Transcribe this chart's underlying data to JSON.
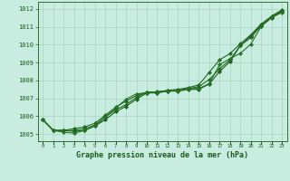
{
  "xlabel": "Graphe pression niveau de la mer (hPa)",
  "xlim": [
    -0.5,
    23.5
  ],
  "ylim": [
    1004.6,
    1012.4
  ],
  "yticks": [
    1005,
    1006,
    1007,
    1008,
    1009,
    1010,
    1011,
    1012
  ],
  "xticks": [
    0,
    1,
    2,
    3,
    4,
    5,
    6,
    7,
    8,
    9,
    10,
    11,
    12,
    13,
    14,
    15,
    16,
    17,
    18,
    19,
    20,
    21,
    22,
    23
  ],
  "background_color": "#c8ece0",
  "grid_color": "#a8d4c0",
  "line_color": "#1a5c1a",
  "lines": [
    [
      1005.8,
      1005.2,
      1005.2,
      1005.15,
      1005.2,
      1005.45,
      1005.8,
      1006.25,
      1006.55,
      1006.95,
      1007.3,
      1007.3,
      1007.4,
      1007.4,
      1007.5,
      1007.5,
      1007.8,
      1008.5,
      1009.05,
      1009.95,
      1010.4,
      1011.05,
      1011.5,
      1011.85
    ],
    [
      1005.8,
      1005.2,
      1005.2,
      1005.2,
      1005.3,
      1005.5,
      1005.95,
      1006.35,
      1006.65,
      1007.05,
      1007.35,
      1007.35,
      1007.4,
      1007.45,
      1007.55,
      1007.65,
      1008.05,
      1008.65,
      1009.15,
      1009.95,
      1010.5,
      1011.1,
      1011.55,
      1011.9
    ],
    [
      1005.8,
      1005.2,
      1005.2,
      1005.3,
      1005.4,
      1005.6,
      1006.05,
      1006.5,
      1006.85,
      1007.15,
      1007.35,
      1007.35,
      1007.45,
      1007.5,
      1007.6,
      1007.75,
      1008.45,
      1009.15,
      1009.5,
      1010.05,
      1010.55,
      1011.15,
      1011.6,
      1011.95
    ],
    [
      1005.8,
      1005.2,
      1005.1,
      1005.05,
      1005.2,
      1005.45,
      1005.95,
      1006.45,
      1006.95,
      1007.25,
      1007.3,
      1007.38,
      1007.42,
      1007.42,
      1007.55,
      1007.55,
      1007.82,
      1008.88,
      1009.22,
      1009.52,
      1010.02,
      1011.02,
      1011.52,
      1011.8
    ]
  ],
  "marker": "D",
  "markersize": 2.2,
  "linewidth": 0.8
}
